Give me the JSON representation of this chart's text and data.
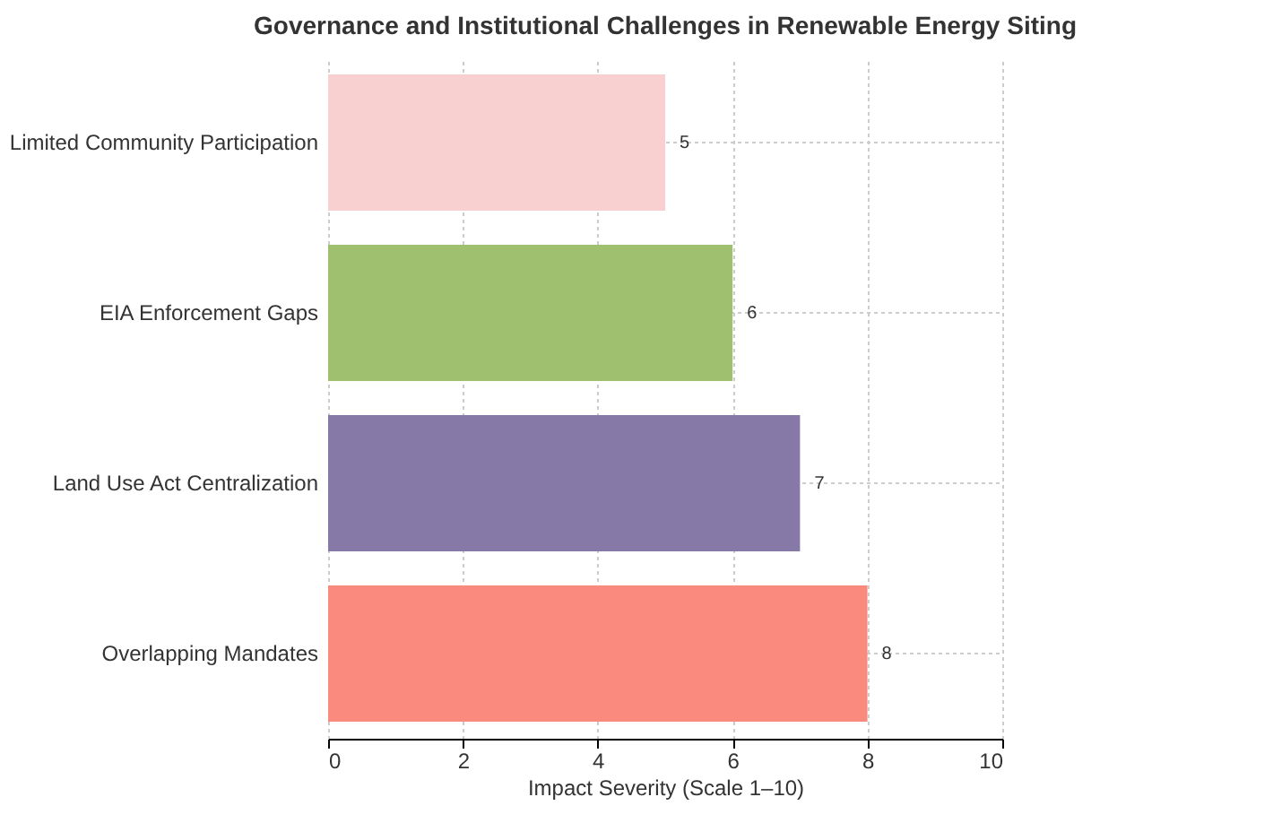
{
  "chart_data": {
    "type": "bar",
    "orientation": "horizontal",
    "title": "Governance and Institutional Challenges in Renewable Energy Siting",
    "xlabel": "Impact Severity (Scale 1–10)",
    "categories": [
      "Limited Community Participation",
      "EIA Enforcement Gaps",
      "Land Use Act Centralization",
      "Overlapping Mandates"
    ],
    "values": [
      5,
      6,
      7,
      8
    ],
    "colors": [
      "#f7d0cf",
      "#9fc16f",
      "#8679a7",
      "#fb8a7e"
    ],
    "xlim": [
      0,
      10
    ],
    "xticks": [
      0,
      2,
      4,
      6,
      8,
      10
    ],
    "grid": true,
    "data_labels": true
  }
}
